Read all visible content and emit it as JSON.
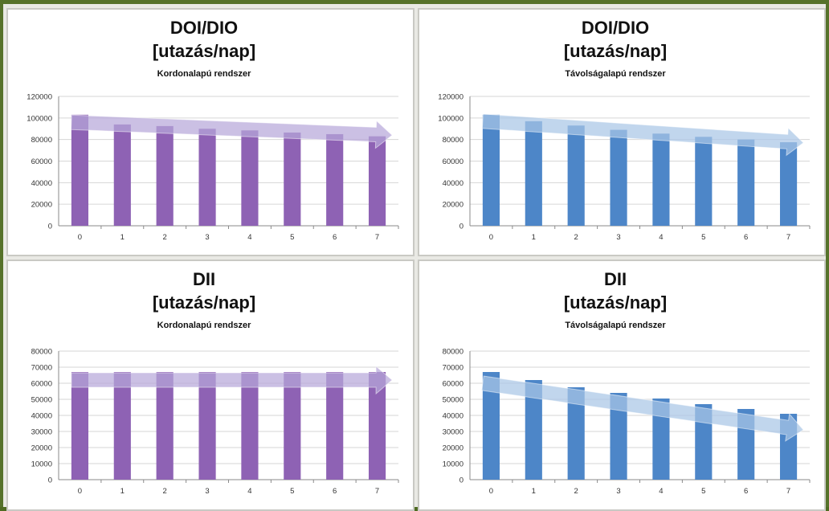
{
  "chart_data": [
    {
      "type": "bar",
      "title": "DOI/DIO",
      "title_line2": "[utazás/nap]",
      "subtitle": "Kordonalapú rendszer",
      "categories": [
        "0",
        "1",
        "2",
        "3",
        "4",
        "5",
        "6",
        "7"
      ],
      "values": [
        103000,
        94000,
        92500,
        90000,
        88500,
        86500,
        85000,
        83000
      ],
      "yticks": [
        "0",
        "20000",
        "40000",
        "60000",
        "80000",
        "100000",
        "120000"
      ],
      "ylim": [
        0,
        120000
      ],
      "grid": true,
      "bar_color": "#8e62b4",
      "arrow": [
        96000,
        84000
      ],
      "arrow_color": "#b7a7d9"
    },
    {
      "type": "bar",
      "title": "DOI/DIO",
      "title_line2": "[utazás/nap]",
      "subtitle": "Távolságalapú rendszer",
      "categories": [
        "0",
        "1",
        "2",
        "3",
        "4",
        "5",
        "6",
        "7"
      ],
      "values": [
        103000,
        97000,
        93000,
        89000,
        85500,
        82500,
        80000,
        77500
      ],
      "yticks": [
        "0",
        "20000",
        "40000",
        "60000",
        "80000",
        "100000",
        "120000"
      ],
      "ylim": [
        0,
        120000
      ],
      "grid": true,
      "bar_color": "#4d86c8",
      "arrow": [
        97000,
        77000
      ],
      "arrow_color": "#a9c6e6"
    },
    {
      "type": "bar",
      "title": "DII",
      "title_line2": "[utazás/nap]",
      "subtitle": "Kordonalapú rendszer",
      "categories": [
        "0",
        "1",
        "2",
        "3",
        "4",
        "5",
        "6",
        "7"
      ],
      "values": [
        67000,
        67000,
        67000,
        67000,
        67000,
        67000,
        67000,
        67000
      ],
      "yticks": [
        "0",
        "10000",
        "20000",
        "30000",
        "40000",
        "50000",
        "60000",
        "70000",
        "80000"
      ],
      "ylim": [
        0,
        80000
      ],
      "grid": true,
      "bar_color": "#8e62b4",
      "arrow": [
        62000,
        62000
      ],
      "arrow_color": "#b7a7d9"
    },
    {
      "type": "bar",
      "title": "DII",
      "title_line2": "[utazás/nap]",
      "subtitle": "Távolságalapú rendszer",
      "categories": [
        "0",
        "1",
        "2",
        "3",
        "4",
        "5",
        "6",
        "7"
      ],
      "values": [
        67000,
        62000,
        57500,
        54000,
        50500,
        47000,
        44000,
        41000
      ],
      "yticks": [
        "0",
        "10000",
        "20000",
        "30000",
        "40000",
        "50000",
        "60000",
        "70000",
        "80000"
      ],
      "ylim": [
        0,
        80000
      ],
      "grid": true,
      "bar_color": "#4d86c8",
      "arrow": [
        60000,
        31000
      ],
      "arrow_color": "#a9c6e6"
    }
  ]
}
